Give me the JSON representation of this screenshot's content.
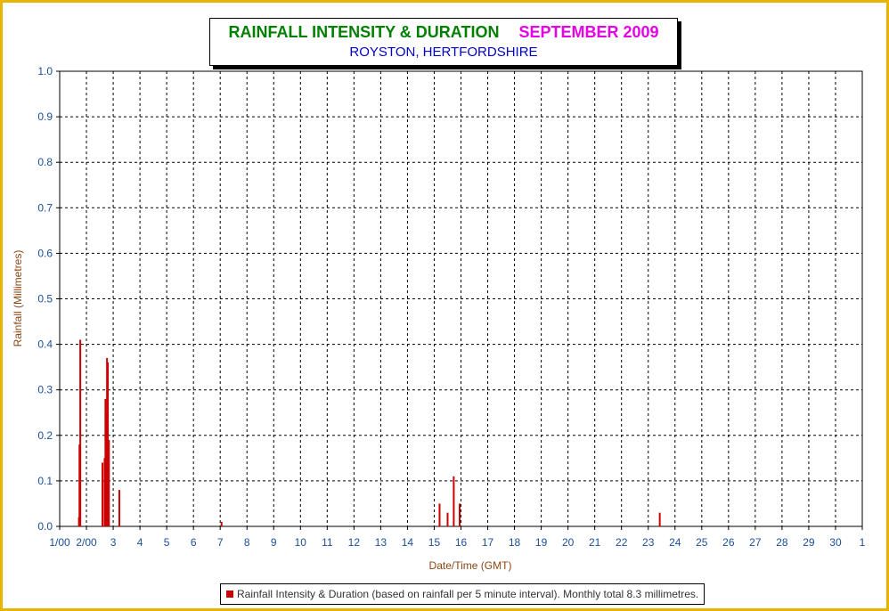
{
  "title": {
    "main": "RAINFALL INTENSITY & DURATION",
    "period": "SEPTEMBER 2009",
    "subtitle": "ROYSTON, HERTFORDSHIRE"
  },
  "colors": {
    "frame": "#e8b400",
    "title_main": "#008000",
    "title_period": "#e600e6",
    "subtitle": "#0000cc",
    "bars": "#cc0000",
    "ticks": "#1a4f9c",
    "axis_label": "#8b4513"
  },
  "chart_data": {
    "type": "bar",
    "xlabel": "Date/Time (GMT)",
    "ylabel": "Rainfall (Millimetres)",
    "ylim": [
      0,
      1.0
    ],
    "xlim": [
      1,
      31
    ],
    "y_ticks": [
      "0.0",
      "0.1",
      "0.2",
      "0.3",
      "0.4",
      "0.5",
      "0.6",
      "0.7",
      "0.8",
      "0.9",
      "1.0"
    ],
    "x_ticks": [
      {
        "label": "1/00",
        "value": 1
      },
      {
        "label": "2/00",
        "value": 2
      },
      {
        "label": "3",
        "value": 3
      },
      {
        "label": "4",
        "value": 4
      },
      {
        "label": "5",
        "value": 5
      },
      {
        "label": "6",
        "value": 6
      },
      {
        "label": "7",
        "value": 7
      },
      {
        "label": "8",
        "value": 8
      },
      {
        "label": "9",
        "value": 9
      },
      {
        "label": "10",
        "value": 10
      },
      {
        "label": "11",
        "value": 11
      },
      {
        "label": "12",
        "value": 12
      },
      {
        "label": "13",
        "value": 13
      },
      {
        "label": "14",
        "value": 14
      },
      {
        "label": "15",
        "value": 15
      },
      {
        "label": "16",
        "value": 16
      },
      {
        "label": "17",
        "value": 17
      },
      {
        "label": "18",
        "value": 18
      },
      {
        "label": "19",
        "value": 19
      },
      {
        "label": "20",
        "value": 20
      },
      {
        "label": "21",
        "value": 21
      },
      {
        "label": "22",
        "value": 22
      },
      {
        "label": "23",
        "value": 23
      },
      {
        "label": "24",
        "value": 24
      },
      {
        "label": "25",
        "value": 25
      },
      {
        "label": "26",
        "value": 26
      },
      {
        "label": "27",
        "value": 27
      },
      {
        "label": "28",
        "value": 28
      },
      {
        "label": "29",
        "value": 29
      },
      {
        "label": "30",
        "value": 30
      },
      {
        "label": "1",
        "value": 31
      }
    ],
    "grid": true,
    "legend_position": "bottom",
    "series": [
      {
        "name": "Rainfall Intensity & Duration (based on rainfall per 5 minute interval). Monthly total 8.3 millimetres.",
        "points": [
          {
            "x": 1.72,
            "y": 0.02
          },
          {
            "x": 1.74,
            "y": 0.18
          },
          {
            "x": 1.77,
            "y": 0.41
          },
          {
            "x": 2.6,
            "y": 0.14
          },
          {
            "x": 2.68,
            "y": 0.15
          },
          {
            "x": 2.71,
            "y": 0.28
          },
          {
            "x": 2.74,
            "y": 0.25
          },
          {
            "x": 2.77,
            "y": 0.37
          },
          {
            "x": 2.8,
            "y": 0.36
          },
          {
            "x": 2.84,
            "y": 0.19
          },
          {
            "x": 3.23,
            "y": 0.08
          },
          {
            "x": 7.05,
            "y": 0.01
          },
          {
            "x": 15.2,
            "y": 0.05
          },
          {
            "x": 15.5,
            "y": 0.03
          },
          {
            "x": 15.73,
            "y": 0.11
          },
          {
            "x": 15.95,
            "y": 0.05
          },
          {
            "x": 23.43,
            "y": 0.03
          }
        ]
      }
    ]
  }
}
